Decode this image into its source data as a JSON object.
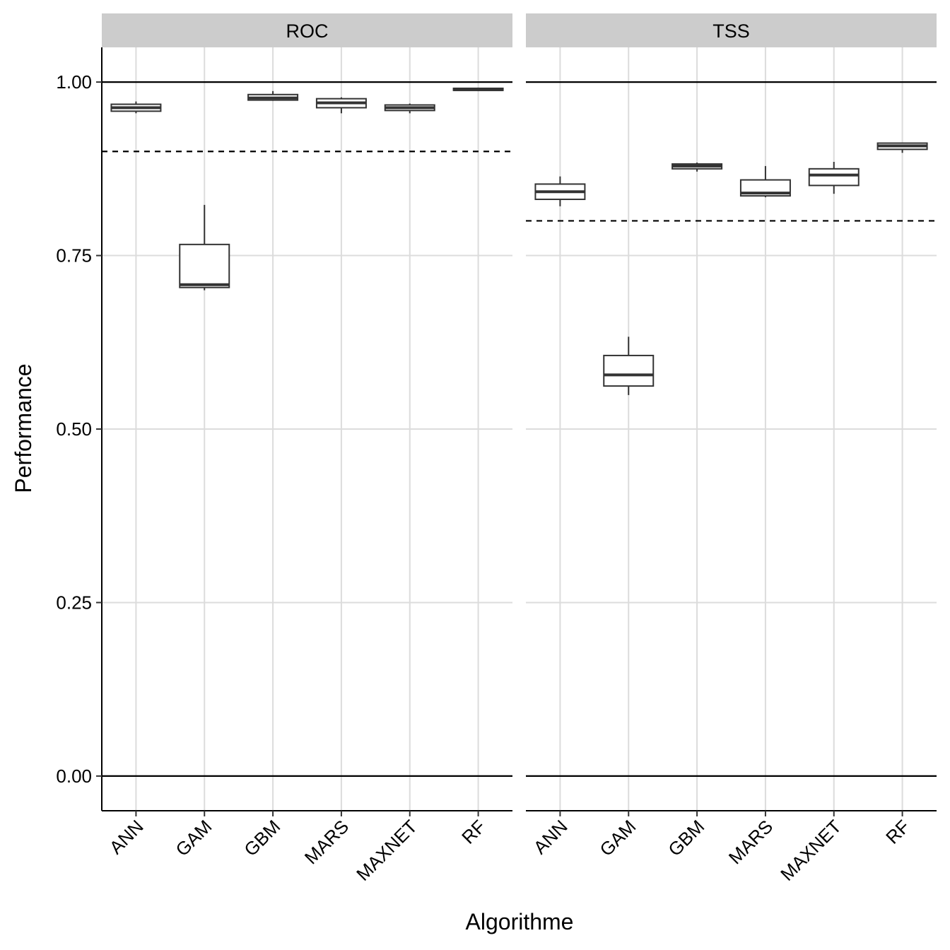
{
  "chart_data": {
    "type": "boxplot",
    "xlabel": "Algorithme",
    "ylabel": "Performance",
    "categories": [
      "ANN",
      "GAM",
      "GBM",
      "MARS",
      "MAXNET",
      "RF"
    ],
    "ylim": [
      -0.05,
      1.05
    ],
    "yticks": [
      0.0,
      0.25,
      0.5,
      0.75,
      1.0
    ],
    "ytick_labels": [
      "0.00",
      "0.25",
      "0.50",
      "0.75",
      "1.00"
    ],
    "grid": true,
    "colors": {
      "strip_bg": "#cccccc",
      "grid": "#dcdcdc",
      "box_stroke": "#333333",
      "box_fill": "#ffffff",
      "ref_line": "#000000"
    },
    "panels": [
      {
        "title": "ROC",
        "solid_hlines": [
          0.0,
          1.0
        ],
        "dashed_hline": 0.9,
        "boxes": [
          {
            "category": "ANN",
            "min": 0.955,
            "q1": 0.958,
            "median": 0.963,
            "q3": 0.968,
            "max": 0.972
          },
          {
            "category": "GAM",
            "min": 0.7,
            "q1": 0.704,
            "median": 0.708,
            "q3": 0.766,
            "max": 0.823
          },
          {
            "category": "GBM",
            "min": 0.973,
            "q1": 0.974,
            "median": 0.977,
            "q3": 0.982,
            "max": 0.987
          },
          {
            "category": "MARS",
            "min": 0.955,
            "q1": 0.963,
            "median": 0.97,
            "q3": 0.976,
            "max": 0.978
          },
          {
            "category": "MAXNET",
            "min": 0.955,
            "q1": 0.959,
            "median": 0.963,
            "q3": 0.967,
            "max": 0.969
          },
          {
            "category": "RF",
            "min": 0.987,
            "q1": 0.988,
            "median": 0.989,
            "q3": 0.991,
            "max": 0.992
          }
        ]
      },
      {
        "title": "TSS",
        "solid_hlines": [
          0.0,
          1.0
        ],
        "dashed_hline": 0.8,
        "boxes": [
          {
            "category": "ANN",
            "min": 0.821,
            "q1": 0.831,
            "median": 0.842,
            "q3": 0.853,
            "max": 0.864
          },
          {
            "category": "GAM",
            "min": 0.549,
            "q1": 0.562,
            "median": 0.578,
            "q3": 0.606,
            "max": 0.633
          },
          {
            "category": "GBM",
            "min": 0.871,
            "q1": 0.875,
            "median": 0.879,
            "q3": 0.882,
            "max": 0.884
          },
          {
            "category": "MARS",
            "min": 0.834,
            "q1": 0.836,
            "median": 0.84,
            "q3": 0.859,
            "max": 0.879
          },
          {
            "category": "MAXNET",
            "min": 0.839,
            "q1": 0.851,
            "median": 0.866,
            "q3": 0.875,
            "max": 0.885
          },
          {
            "category": "RF",
            "min": 0.898,
            "q1": 0.903,
            "median": 0.908,
            "q3": 0.912,
            "max": 0.913
          }
        ]
      }
    ]
  }
}
